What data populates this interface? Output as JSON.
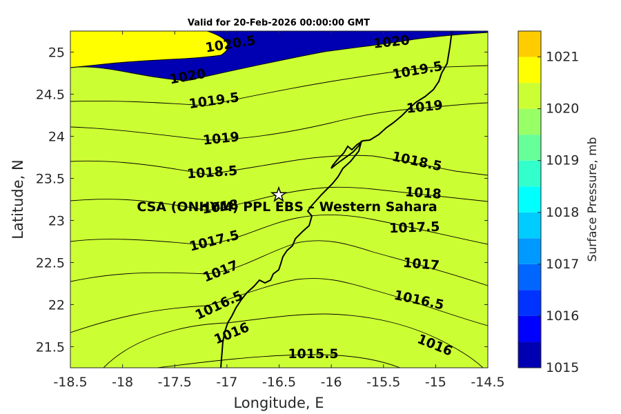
{
  "title": "Valid for 20-Feb-2026 00:00:00 GMT",
  "map": {
    "xlabel": "Longitude, E",
    "ylabel": "Latitude, N",
    "xlim": [
      -18.5,
      -14.5
    ],
    "ylim": [
      21.25,
      25.25
    ],
    "xticks": [
      "-18.5",
      "-18",
      "-17.5",
      "-17",
      "-16.5",
      "-16",
      "-15.5",
      "-15",
      "-14.5"
    ],
    "yticks": [
      "21.5",
      "22",
      "22.5",
      "23",
      "23.5",
      "24",
      "24.5",
      "25"
    ]
  },
  "site": {
    "label": "CSA (ONHYM) PPL EBS – Western Sahara",
    "lon": -16.5,
    "lat": 23.3,
    "marker": "star-icon"
  },
  "contour_labels": [
    "1015.5",
    "1016",
    "1016",
    "1016.5",
    "1016.5",
    "1017",
    "1017",
    "1017.5",
    "1017.5",
    "1018",
    "1018",
    "1018.5",
    "1018.5",
    "1019",
    "1019",
    "1019.5",
    "1019.5",
    "1020",
    "1020",
    "1020.5"
  ],
  "colorbar": {
    "label": "Surface Pressure, mb",
    "ticks": [
      "1015",
      "1016",
      "1017",
      "1018",
      "1019",
      "1020",
      "1021"
    ],
    "levels": [
      1015,
      1015.5,
      1016,
      1016.5,
      1017,
      1017.5,
      1018,
      1018.5,
      1019,
      1019.5,
      1020,
      1020.5,
      1021,
      1021.5
    ],
    "colors": [
      "#0000b2",
      "#0000ff",
      "#0033ff",
      "#0066ff",
      "#0099ff",
      "#00ccff",
      "#00ffff",
      "#33ffcc",
      "#66ff99",
      "#99ff66",
      "#ccff33",
      "#ffff00",
      "#ffcc00",
      "#ff9900",
      "#ff6600",
      "#ff3300",
      "#ff0000"
    ]
  },
  "chart_data": {
    "type": "heatmap",
    "title": "Valid for 20-Feb-2026 00:00:00 GMT",
    "xlabel": "Longitude, E",
    "ylabel": "Latitude, N",
    "variable": "Surface Pressure, mb",
    "x_range": [
      -18.5,
      -14.5
    ],
    "y_range": [
      21.25,
      25.25
    ],
    "contour_levels": [
      1015.5,
      1016,
      1016.5,
      1017,
      1017.5,
      1018,
      1018.5,
      1019,
      1019.5,
      1020,
      1020.5
    ],
    "grid": false,
    "colorbar_placement": "right"
  }
}
